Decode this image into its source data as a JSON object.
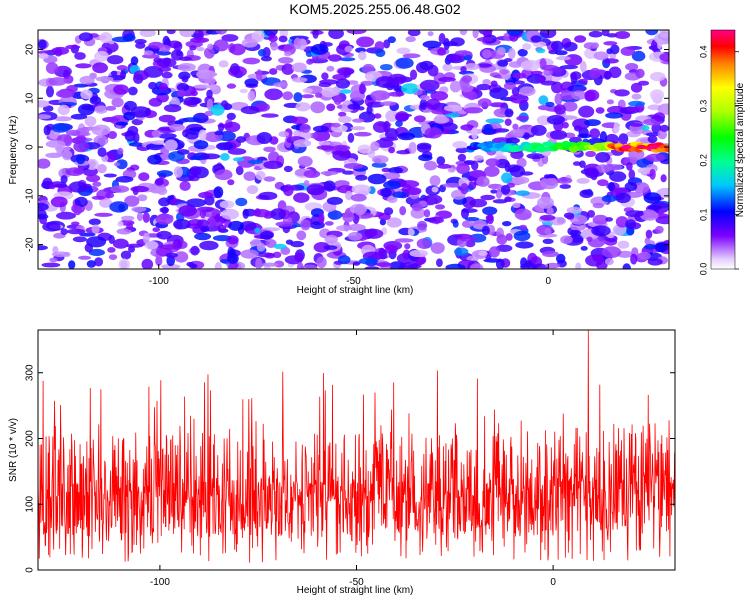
{
  "page": {
    "title": "KOM5.2025.255.06.48.G02"
  },
  "chart_data": [
    {
      "type": "heatmap",
      "xlabel": "Height of straight line (km)",
      "ylabel": "Frequency (Hz)",
      "xlim": [
        -131,
        31
      ],
      "ylim": [
        -25,
        24
      ],
      "xticks": [
        -100,
        -50,
        0
      ],
      "yticks": [
        -20,
        -10,
        0,
        10,
        20
      ],
      "colorbar": {
        "label": "Normalized spectral amplitude",
        "range": [
          0,
          0.44
        ],
        "ticks": [
          0.0,
          0.1,
          0.2,
          0.3,
          0.4
        ],
        "tick_labels": [
          "0.0",
          "0.1",
          "0.2",
          "0.3",
          "0.4"
        ],
        "colors": [
          "#ffffff",
          "#7a00ff",
          "#0000ff",
          "#00ffff",
          "#00ff00",
          "#ffff00",
          "#ff0000",
          "#ff00ff"
        ]
      },
      "features": [
        {
          "description": "signal track near 0 Hz",
          "x_range": [
            -20,
            31
          ],
          "frequency_hz": 0,
          "peak_amplitude": 0.44
        }
      ],
      "background_level": 0.07
    },
    {
      "type": "line",
      "xlabel": "Height of straight line (km)",
      "ylabel": "SNR (10 * v/v)",
      "xlim": [
        -131,
        31
      ],
      "ylim": [
        0,
        365
      ],
      "xticks": [
        -100,
        -50,
        0
      ],
      "yticks": [
        0,
        100,
        200,
        300
      ],
      "series_color": "#ff0000",
      "series": [
        {
          "x_start": -131,
          "x_end": 31,
          "n_points": 1500,
          "typical_min": 20,
          "typical_max": 260,
          "mean": 120,
          "peak_x": 9,
          "peak_y": 365
        }
      ]
    }
  ]
}
